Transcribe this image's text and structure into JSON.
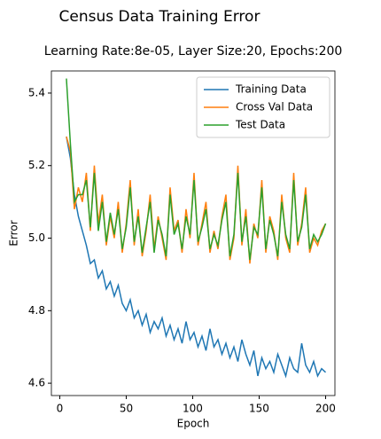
{
  "chart_data": {
    "type": "line",
    "title": "Census Data Training Error",
    "subtitle": "Learning Rate:8e-05, Layer Size:20, Epochs:200",
    "x_label": "Epoch",
    "y_label": "Error",
    "x": [
      5,
      8,
      11,
      14,
      17,
      20,
      23,
      26,
      29,
      32,
      35,
      38,
      41,
      44,
      47,
      50,
      53,
      56,
      59,
      62,
      65,
      68,
      71,
      74,
      77,
      80,
      83,
      86,
      89,
      92,
      95,
      98,
      101,
      104,
      107,
      110,
      113,
      116,
      119,
      122,
      125,
      128,
      131,
      134,
      137,
      140,
      143,
      146,
      149,
      152,
      155,
      158,
      161,
      164,
      167,
      170,
      173,
      176,
      179,
      182,
      185,
      188,
      191,
      194,
      197,
      200
    ],
    "series": [
      {
        "name": "Training Data",
        "color": "#1f77b4",
        "values": [
          5.28,
          5.22,
          5.12,
          5.06,
          5.02,
          4.98,
          4.93,
          4.94,
          4.89,
          4.91,
          4.86,
          4.88,
          4.84,
          4.87,
          4.82,
          4.8,
          4.83,
          4.78,
          4.8,
          4.76,
          4.79,
          4.74,
          4.77,
          4.75,
          4.78,
          4.73,
          4.76,
          4.72,
          4.75,
          4.71,
          4.77,
          4.72,
          4.74,
          4.7,
          4.73,
          4.69,
          4.75,
          4.7,
          4.72,
          4.68,
          4.71,
          4.67,
          4.7,
          4.66,
          4.72,
          4.68,
          4.65,
          4.69,
          4.62,
          4.67,
          4.64,
          4.66,
          4.63,
          4.68,
          4.65,
          4.62,
          4.67,
          4.64,
          4.63,
          4.71,
          4.65,
          4.63,
          4.66,
          4.62,
          4.64,
          4.63
        ]
      },
      {
        "name": "Cross Val Data",
        "color": "#ff7f0e",
        "values": [
          5.28,
          5.24,
          5.08,
          5.14,
          5.1,
          5.18,
          5.02,
          5.2,
          5.04,
          5.12,
          4.98,
          5.06,
          5.0,
          5.1,
          4.96,
          5.04,
          5.16,
          4.98,
          5.08,
          4.95,
          5.02,
          5.12,
          4.97,
          5.06,
          5.0,
          4.94,
          5.14,
          5.02,
          5.05,
          4.96,
          5.08,
          5.0,
          5.18,
          4.98,
          5.04,
          5.1,
          4.96,
          5.02,
          4.97,
          5.06,
          5.12,
          4.94,
          5.0,
          5.2,
          4.98,
          5.08,
          4.93,
          5.04,
          5.0,
          5.16,
          4.96,
          5.06,
          5.02,
          4.94,
          5.12,
          5.0,
          4.96,
          5.18,
          4.98,
          5.04,
          5.14,
          4.96,
          5.0,
          4.98,
          5.02,
          5.04
        ]
      },
      {
        "name": "Test Data",
        "color": "#2ca02c",
        "values": [
          5.44,
          5.26,
          5.1,
          5.12,
          5.12,
          5.16,
          5.03,
          5.18,
          5.02,
          5.1,
          4.99,
          5.07,
          5.01,
          5.08,
          4.97,
          5.03,
          5.14,
          4.99,
          5.06,
          4.96,
          5.03,
          5.1,
          4.96,
          5.05,
          5.01,
          4.95,
          5.12,
          5.01,
          5.04,
          4.97,
          5.06,
          5.01,
          5.16,
          4.99,
          5.03,
          5.08,
          4.97,
          5.01,
          4.98,
          5.05,
          5.1,
          4.95,
          5.01,
          5.18,
          4.99,
          5.06,
          4.94,
          5.03,
          5.01,
          5.14,
          4.97,
          5.05,
          5.01,
          4.95,
          5.1,
          5.01,
          4.97,
          5.16,
          4.99,
          5.03,
          5.12,
          4.97,
          5.01,
          4.99,
          5.01,
          5.04
        ]
      }
    ],
    "xlim": [
      -6.3,
      207
    ],
    "ylim": [
      4.566,
      5.461
    ],
    "xticks": [
      0,
      50,
      100,
      150,
      200
    ],
    "yticks": [
      4.6,
      4.8,
      {
        "value": 5,
        "label": "5.0"
      },
      5.2,
      5.4
    ],
    "legend": "upper right"
  }
}
